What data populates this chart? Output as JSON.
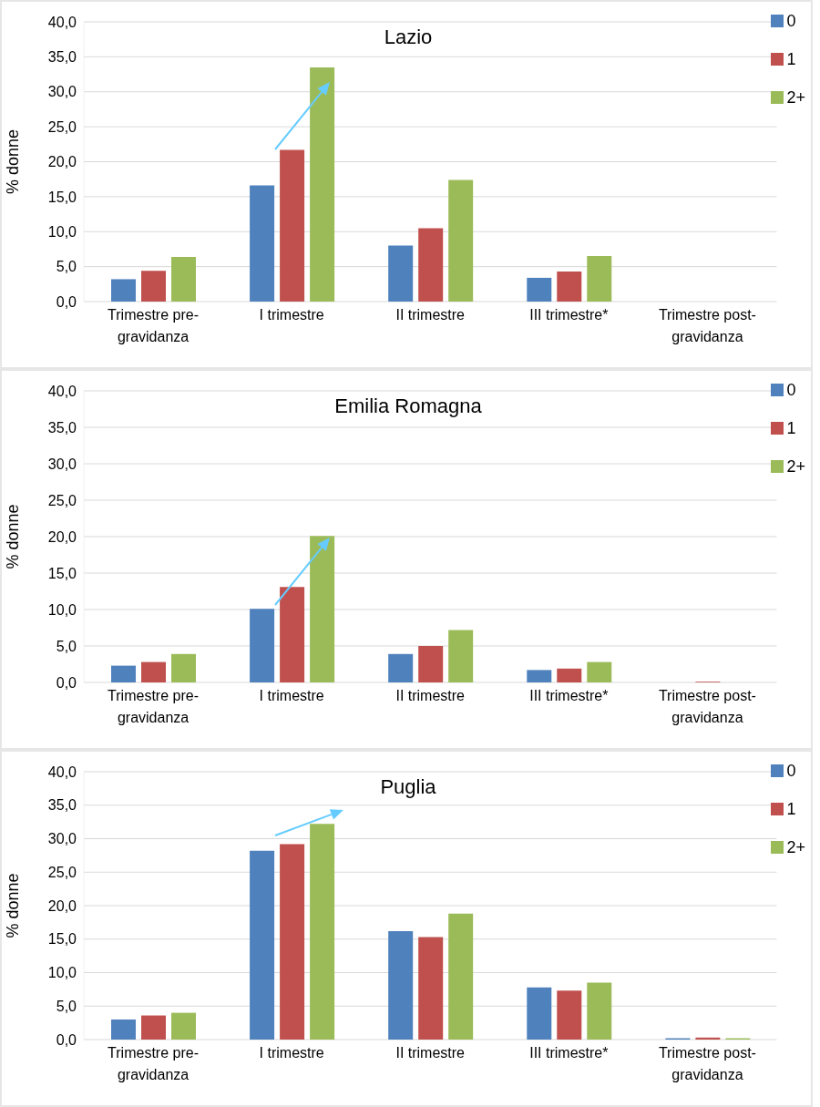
{
  "chart_data": [
    {
      "type": "bar",
      "title": "Lazio",
      "ylabel": "% donne",
      "categories": [
        "Trimestre pre-gravidanza",
        "I trimestre",
        "II trimestre",
        "III trimestre*",
        "Trimestre post-gravidanza"
      ],
      "series": [
        {
          "name": "0",
          "color": "#4f81bd",
          "values": [
            3.2,
            16.6,
            8.0,
            3.4,
            0
          ]
        },
        {
          "name": "1",
          "color": "#c0504d",
          "values": [
            4.4,
            21.7,
            10.5,
            4.3,
            0
          ]
        },
        {
          "name": "2+",
          "color": "#9bbb59",
          "values": [
            6.4,
            33.5,
            17.4,
            6.5,
            0
          ]
        }
      ],
      "ylim": [
        0,
        40
      ],
      "yticks": [
        {
          "value": 0,
          "label": "0,0"
        },
        {
          "value": 5,
          "label": "5,0"
        },
        {
          "value": 10,
          "label": "10,0"
        },
        {
          "value": 15,
          "label": "15,0"
        },
        {
          "value": 20,
          "label": "20,0"
        },
        {
          "value": 25,
          "label": "25,0"
        },
        {
          "value": 30,
          "label": "30,0"
        },
        {
          "value": 35,
          "label": "35,0"
        },
        {
          "value": 40,
          "label": "40,0"
        }
      ],
      "grid": "y",
      "legend": "right"
    },
    {
      "type": "bar",
      "title": "Emilia Romagna",
      "ylabel": "% donne",
      "categories": [
        "Trimestre pre-gravidanza",
        "I trimestre",
        "II trimestre",
        "III trimestre*",
        "Trimestre post-gravidanza"
      ],
      "series": [
        {
          "name": "0",
          "color": "#4f81bd",
          "values": [
            2.3,
            10.1,
            3.9,
            1.7,
            0
          ]
        },
        {
          "name": "1",
          "color": "#c0504d",
          "values": [
            2.8,
            13.1,
            5.0,
            1.9,
            0.1
          ]
        },
        {
          "name": "2+",
          "color": "#9bbb59",
          "values": [
            3.9,
            20.1,
            7.2,
            2.8,
            0
          ]
        }
      ],
      "ylim": [
        0,
        40
      ],
      "yticks": [
        {
          "value": 0,
          "label": "0,0"
        },
        {
          "value": 5,
          "label": "5,0"
        },
        {
          "value": 10,
          "label": "10,0"
        },
        {
          "value": 15,
          "label": "15,0"
        },
        {
          "value": 20,
          "label": "20,0"
        },
        {
          "value": 25,
          "label": "25,0"
        },
        {
          "value": 30,
          "label": "30,0"
        },
        {
          "value": 35,
          "label": "35,0"
        },
        {
          "value": 40,
          "label": "40,0"
        }
      ],
      "grid": "y",
      "legend": "right"
    },
    {
      "type": "bar",
      "title": "Puglia",
      "ylabel": "% donne",
      "categories": [
        "Trimestre pre-gravidanza",
        "I trimestre",
        "II trimestre",
        "III trimestre*",
        "Trimestre post-gravidanza"
      ],
      "series": [
        {
          "name": "0",
          "color": "#4f81bd",
          "values": [
            3.0,
            28.2,
            16.2,
            7.8,
            0.2
          ]
        },
        {
          "name": "1",
          "color": "#c0504d",
          "values": [
            3.6,
            29.2,
            15.3,
            7.3,
            0.3
          ]
        },
        {
          "name": "2+",
          "color": "#9bbb59",
          "values": [
            4.0,
            32.2,
            18.8,
            8.5,
            0.2
          ]
        }
      ],
      "ylim": [
        0,
        40
      ],
      "yticks": [
        {
          "value": 0,
          "label": "0,0"
        },
        {
          "value": 5,
          "label": "5,0"
        },
        {
          "value": 10,
          "label": "10,0"
        },
        {
          "value": 15,
          "label": "15,0"
        },
        {
          "value": 20,
          "label": "20,0"
        },
        {
          "value": 25,
          "label": "25,0"
        },
        {
          "value": 30,
          "label": "30,0"
        },
        {
          "value": 35,
          "label": "35,0"
        },
        {
          "value": 40,
          "label": "40,0"
        }
      ],
      "grid": "y",
      "legend": "right"
    }
  ]
}
